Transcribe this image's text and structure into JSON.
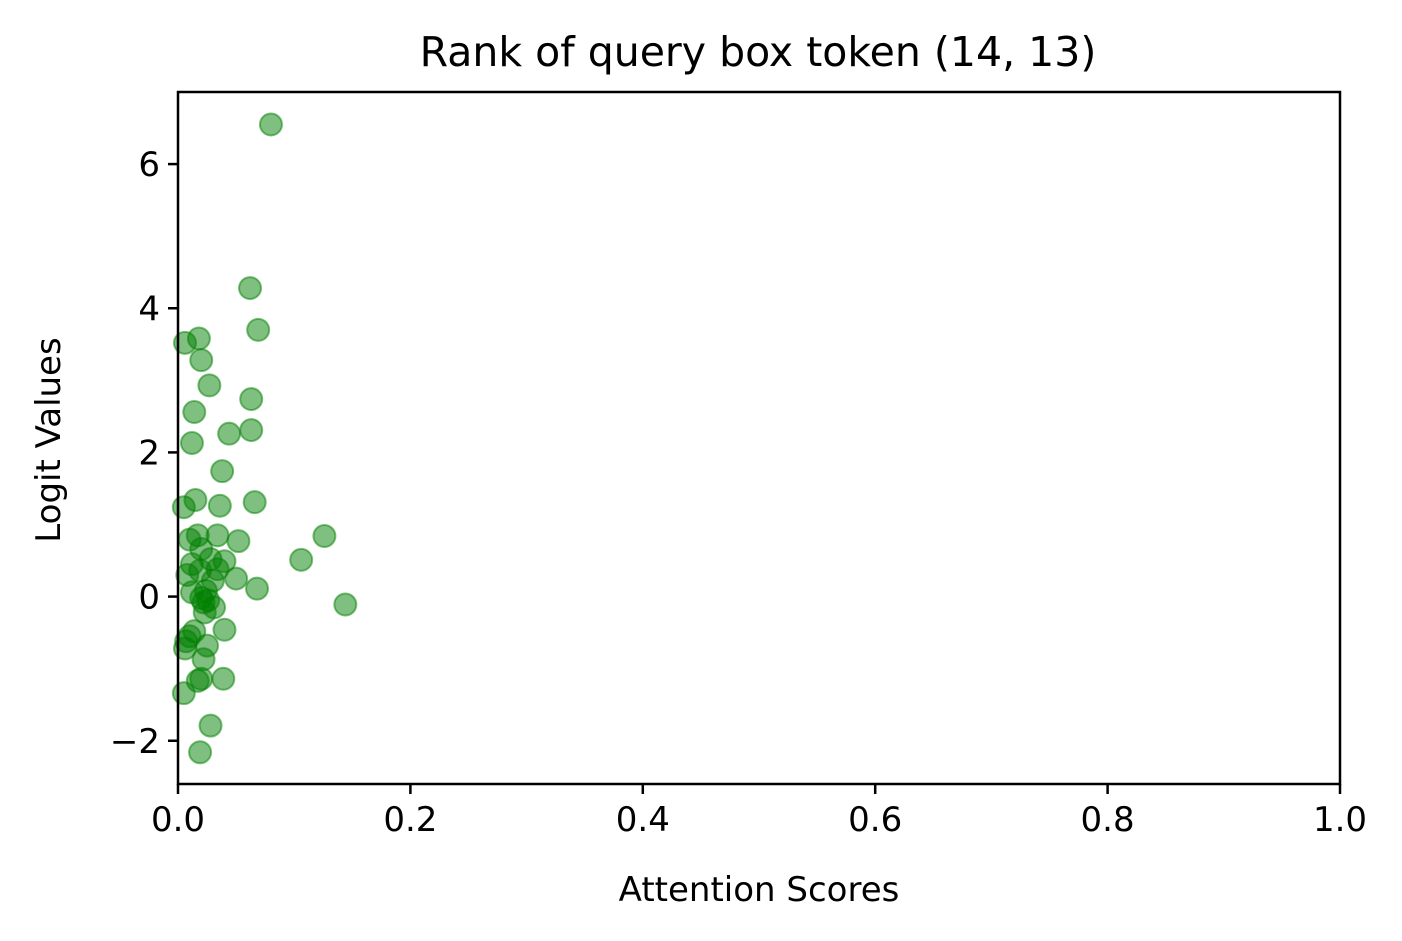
{
  "chart_data": {
    "type": "scatter",
    "title": "Rank of query box token (14, 13)",
    "xlabel": "Attention Scores",
    "ylabel": "Logit Values",
    "xlim": [
      0.0,
      1.0
    ],
    "ylim": [
      -2.6,
      7.0
    ],
    "xticks": [
      0.0,
      0.2,
      0.4,
      0.6,
      0.8,
      1.0
    ],
    "xtick_labels": [
      "0.0",
      "0.2",
      "0.4",
      "0.6",
      "0.8",
      "1.0"
    ],
    "yticks": [
      -2,
      0,
      2,
      4,
      6
    ],
    "ytick_labels": [
      "−2",
      "0",
      "2",
      "4",
      "6"
    ],
    "grid": false,
    "marker_color": "#008000",
    "marker_alpha": 0.5,
    "points": [
      {
        "x": 0.08,
        "y": 6.55
      },
      {
        "x": 0.062,
        "y": 4.28
      },
      {
        "x": 0.069,
        "y": 3.7
      },
      {
        "x": 0.018,
        "y": 3.58
      },
      {
        "x": 0.006,
        "y": 3.52
      },
      {
        "x": 0.02,
        "y": 3.28
      },
      {
        "x": 0.027,
        "y": 2.93
      },
      {
        "x": 0.063,
        "y": 2.74
      },
      {
        "x": 0.014,
        "y": 2.56
      },
      {
        "x": 0.063,
        "y": 2.31
      },
      {
        "x": 0.044,
        "y": 2.26
      },
      {
        "x": 0.012,
        "y": 2.13
      },
      {
        "x": 0.038,
        "y": 1.74
      },
      {
        "x": 0.015,
        "y": 1.34
      },
      {
        "x": 0.066,
        "y": 1.31
      },
      {
        "x": 0.036,
        "y": 1.26
      },
      {
        "x": 0.005,
        "y": 1.24
      },
      {
        "x": 0.126,
        "y": 0.84
      },
      {
        "x": 0.034,
        "y": 0.85
      },
      {
        "x": 0.017,
        "y": 0.85
      },
      {
        "x": 0.01,
        "y": 0.79
      },
      {
        "x": 0.052,
        "y": 0.77
      },
      {
        "x": 0.02,
        "y": 0.66
      },
      {
        "x": 0.028,
        "y": 0.52
      },
      {
        "x": 0.106,
        "y": 0.51
      },
      {
        "x": 0.04,
        "y": 0.49
      },
      {
        "x": 0.012,
        "y": 0.45
      },
      {
        "x": 0.034,
        "y": 0.38
      },
      {
        "x": 0.019,
        "y": 0.36
      },
      {
        "x": 0.008,
        "y": 0.3
      },
      {
        "x": 0.05,
        "y": 0.25
      },
      {
        "x": 0.03,
        "y": 0.22
      },
      {
        "x": 0.068,
        "y": 0.11
      },
      {
        "x": 0.024,
        "y": 0.08
      },
      {
        "x": 0.012,
        "y": 0.06
      },
      {
        "x": 0.02,
        "y": -0.02
      },
      {
        "x": 0.026,
        "y": -0.05
      },
      {
        "x": 0.022,
        "y": -0.08
      },
      {
        "x": 0.144,
        "y": -0.11
      },
      {
        "x": 0.031,
        "y": -0.15
      },
      {
        "x": 0.023,
        "y": -0.22
      },
      {
        "x": 0.04,
        "y": -0.46
      },
      {
        "x": 0.014,
        "y": -0.48
      },
      {
        "x": 0.01,
        "y": -0.55
      },
      {
        "x": 0.007,
        "y": -0.62
      },
      {
        "x": 0.025,
        "y": -0.68
      },
      {
        "x": 0.006,
        "y": -0.72
      },
      {
        "x": 0.022,
        "y": -0.87
      },
      {
        "x": 0.039,
        "y": -1.14
      },
      {
        "x": 0.02,
        "y": -1.14
      },
      {
        "x": 0.017,
        "y": -1.17
      },
      {
        "x": 0.005,
        "y": -1.34
      },
      {
        "x": 0.028,
        "y": -1.79
      },
      {
        "x": 0.019,
        "y": -2.16
      }
    ]
  }
}
